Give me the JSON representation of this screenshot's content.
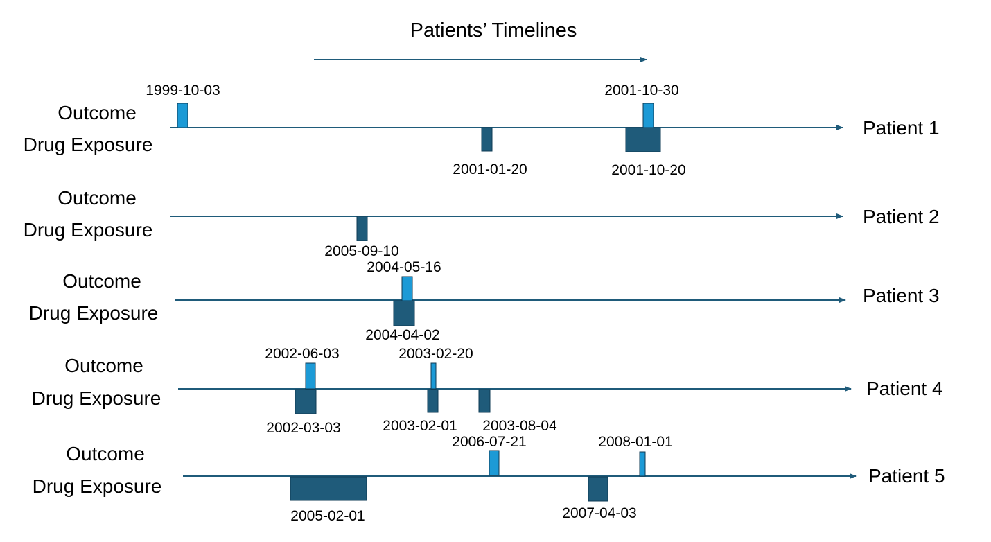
{
  "title": "Patients’ Timelines",
  "row_labels": {
    "outcome": "Outcome",
    "drug": "Drug Exposure"
  },
  "colors": {
    "line": "#1f5b7a",
    "outcome": "#1c9ad6",
    "drug": "#1f5b7a",
    "outline": "#0f3b54"
  },
  "patients": [
    {
      "name": "Patient 1",
      "outcomes": [
        {
          "date": "1999-10-03"
        },
        {
          "date": "2001-10-30"
        }
      ],
      "drugs": [
        {
          "date": "2001-01-20"
        },
        {
          "date": "2001-10-20"
        }
      ]
    },
    {
      "name": "Patient 2",
      "outcomes": [],
      "drugs": [
        {
          "date": "2005-09-10"
        }
      ]
    },
    {
      "name": "Patient 3",
      "outcomes": [
        {
          "date": "2004-05-16"
        }
      ],
      "drugs": [
        {
          "date": "2004-04-02"
        }
      ]
    },
    {
      "name": "Patient 4",
      "outcomes": [
        {
          "date": "2002-06-03"
        },
        {
          "date": "2003-02-20"
        }
      ],
      "drugs": [
        {
          "date": "2002-03-03"
        },
        {
          "date": "2003-02-01"
        },
        {
          "date": "2003-08-04"
        }
      ]
    },
    {
      "name": "Patient 5",
      "outcomes": [
        {
          "date": "2006-07-21"
        },
        {
          "date": "2008-01-01"
        }
      ],
      "drugs": [
        {
          "date": "2005-02-01"
        },
        {
          "date": "2007-04-03"
        }
      ]
    }
  ]
}
